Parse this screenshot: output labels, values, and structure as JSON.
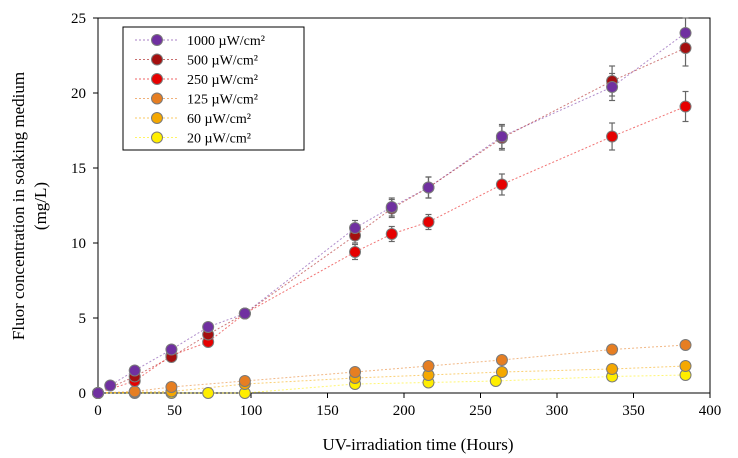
{
  "chart_data": {
    "type": "scatter",
    "xlabel": "UV-irradiation time (Hours)",
    "ylabel_line1": "Fluor concentration in soaking medium",
    "ylabel_line2": "(mg/L)",
    "xlim": [
      0,
      400
    ],
    "ylim": [
      0,
      25
    ],
    "xticks": [
      0,
      50,
      100,
      150,
      200,
      250,
      300,
      350,
      400
    ],
    "yticks": [
      0,
      5,
      10,
      15,
      20,
      25
    ],
    "grid": false,
    "legend_position": "top-left",
    "series": [
      {
        "name": "1000 µW/cm²",
        "color": "#7030a0",
        "points": [
          {
            "x": 0,
            "y": 0
          },
          {
            "x": 8,
            "y": 0.5
          },
          {
            "x": 24,
            "y": 1.5
          },
          {
            "x": 48,
            "y": 2.9
          },
          {
            "x": 72,
            "y": 4.4
          },
          {
            "x": 96,
            "y": 5.3
          },
          {
            "x": 168,
            "y": 11.0,
            "err": 0.5
          },
          {
            "x": 192,
            "y": 12.4,
            "err": 0.6
          },
          {
            "x": 216,
            "y": 13.7,
            "err": 0.7
          },
          {
            "x": 264,
            "y": 17.1,
            "err": 0.8
          },
          {
            "x": 336,
            "y": 20.4,
            "err": 0.9
          },
          {
            "x": 384,
            "y": 24.0,
            "err": 1.0
          }
        ]
      },
      {
        "name": "500 µW/cm²",
        "color": "#a50f0f",
        "points": [
          {
            "x": 0,
            "y": 0
          },
          {
            "x": 24,
            "y": 1.1
          },
          {
            "x": 48,
            "y": 2.4
          },
          {
            "x": 72,
            "y": 3.9
          },
          {
            "x": 96,
            "y": 5.3
          },
          {
            "x": 168,
            "y": 10.5,
            "err": 0.5
          },
          {
            "x": 192,
            "y": 12.3,
            "err": 0.6
          },
          {
            "x": 216,
            "y": 13.7,
            "err": 0.7
          },
          {
            "x": 264,
            "y": 17.0,
            "err": 0.8
          },
          {
            "x": 336,
            "y": 20.8,
            "err": 1.0
          },
          {
            "x": 384,
            "y": 23.0,
            "err": 1.2
          }
        ]
      },
      {
        "name": "250 µW/cm²",
        "color": "#e60000",
        "points": [
          {
            "x": 0,
            "y": 0
          },
          {
            "x": 24,
            "y": 0.8
          },
          {
            "x": 48,
            "y": 2.5
          },
          {
            "x": 72,
            "y": 3.4
          },
          {
            "x": 96,
            "y": 5.3
          },
          {
            "x": 168,
            "y": 9.4,
            "err": 0.5
          },
          {
            "x": 192,
            "y": 10.6,
            "err": 0.5
          },
          {
            "x": 216,
            "y": 11.4,
            "err": 0.5
          },
          {
            "x": 264,
            "y": 13.9,
            "err": 0.7
          },
          {
            "x": 336,
            "y": 17.1,
            "err": 0.9
          },
          {
            "x": 384,
            "y": 19.1,
            "err": 1.0
          }
        ]
      },
      {
        "name": "125 µW/cm²",
        "color": "#e67e22",
        "points": [
          {
            "x": 0,
            "y": 0
          },
          {
            "x": 24,
            "y": 0.1
          },
          {
            "x": 48,
            "y": 0.4
          },
          {
            "x": 96,
            "y": 0.8
          },
          {
            "x": 168,
            "y": 1.4
          },
          {
            "x": 216,
            "y": 1.8
          },
          {
            "x": 264,
            "y": 2.2
          },
          {
            "x": 336,
            "y": 2.9
          },
          {
            "x": 384,
            "y": 3.2
          }
        ]
      },
      {
        "name": "60 µW/cm²",
        "color": "#f5a800",
        "points": [
          {
            "x": 0,
            "y": 0
          },
          {
            "x": 24,
            "y": 0.05
          },
          {
            "x": 48,
            "y": 0.1
          },
          {
            "x": 96,
            "y": 0.6
          },
          {
            "x": 168,
            "y": 1.0
          },
          {
            "x": 216,
            "y": 1.2
          },
          {
            "x": 264,
            "y": 1.4
          },
          {
            "x": 336,
            "y": 1.6
          },
          {
            "x": 384,
            "y": 1.8
          }
        ]
      },
      {
        "name": "20 µW/cm²",
        "color": "#ffee00",
        "points": [
          {
            "x": 0,
            "y": 0
          },
          {
            "x": 24,
            "y": 0
          },
          {
            "x": 48,
            "y": 0
          },
          {
            "x": 72,
            "y": 0
          },
          {
            "x": 96,
            "y": 0
          },
          {
            "x": 168,
            "y": 0.6
          },
          {
            "x": 216,
            "y": 0.7
          },
          {
            "x": 260,
            "y": 0.8
          },
          {
            "x": 336,
            "y": 1.1
          },
          {
            "x": 384,
            "y": 1.2
          }
        ]
      }
    ]
  }
}
